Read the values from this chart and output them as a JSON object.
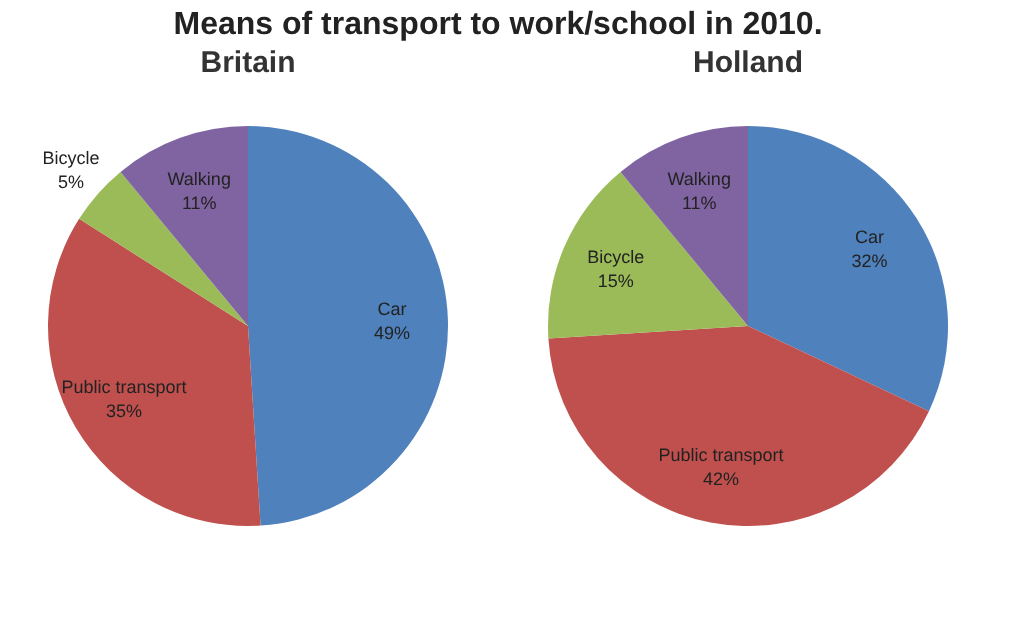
{
  "chart_data": [
    {
      "type": "pie",
      "title": "Britain",
      "annotations": [
        "Means of transport to work/school in 2010."
      ],
      "categories": [
        "Car",
        "Public transport",
        "Bicycle",
        "Walking"
      ],
      "values": [
        49,
        35,
        5,
        11
      ],
      "colors": [
        "#4f81bd",
        "#c0504d",
        "#9bbb59",
        "#8064a2"
      ],
      "value_labels": [
        "49%",
        "35%",
        "5%",
        "11%"
      ]
    },
    {
      "type": "pie",
      "title": "Holland",
      "categories": [
        "Car",
        "Public transport",
        "Bicycle",
        "Walking"
      ],
      "values": [
        32,
        42,
        15,
        11
      ],
      "colors": [
        "#4f81bd",
        "#c0504d",
        "#9bbb59",
        "#8064a2"
      ],
      "value_labels": [
        "32%",
        "42%",
        "15%",
        "11%"
      ]
    }
  ]
}
